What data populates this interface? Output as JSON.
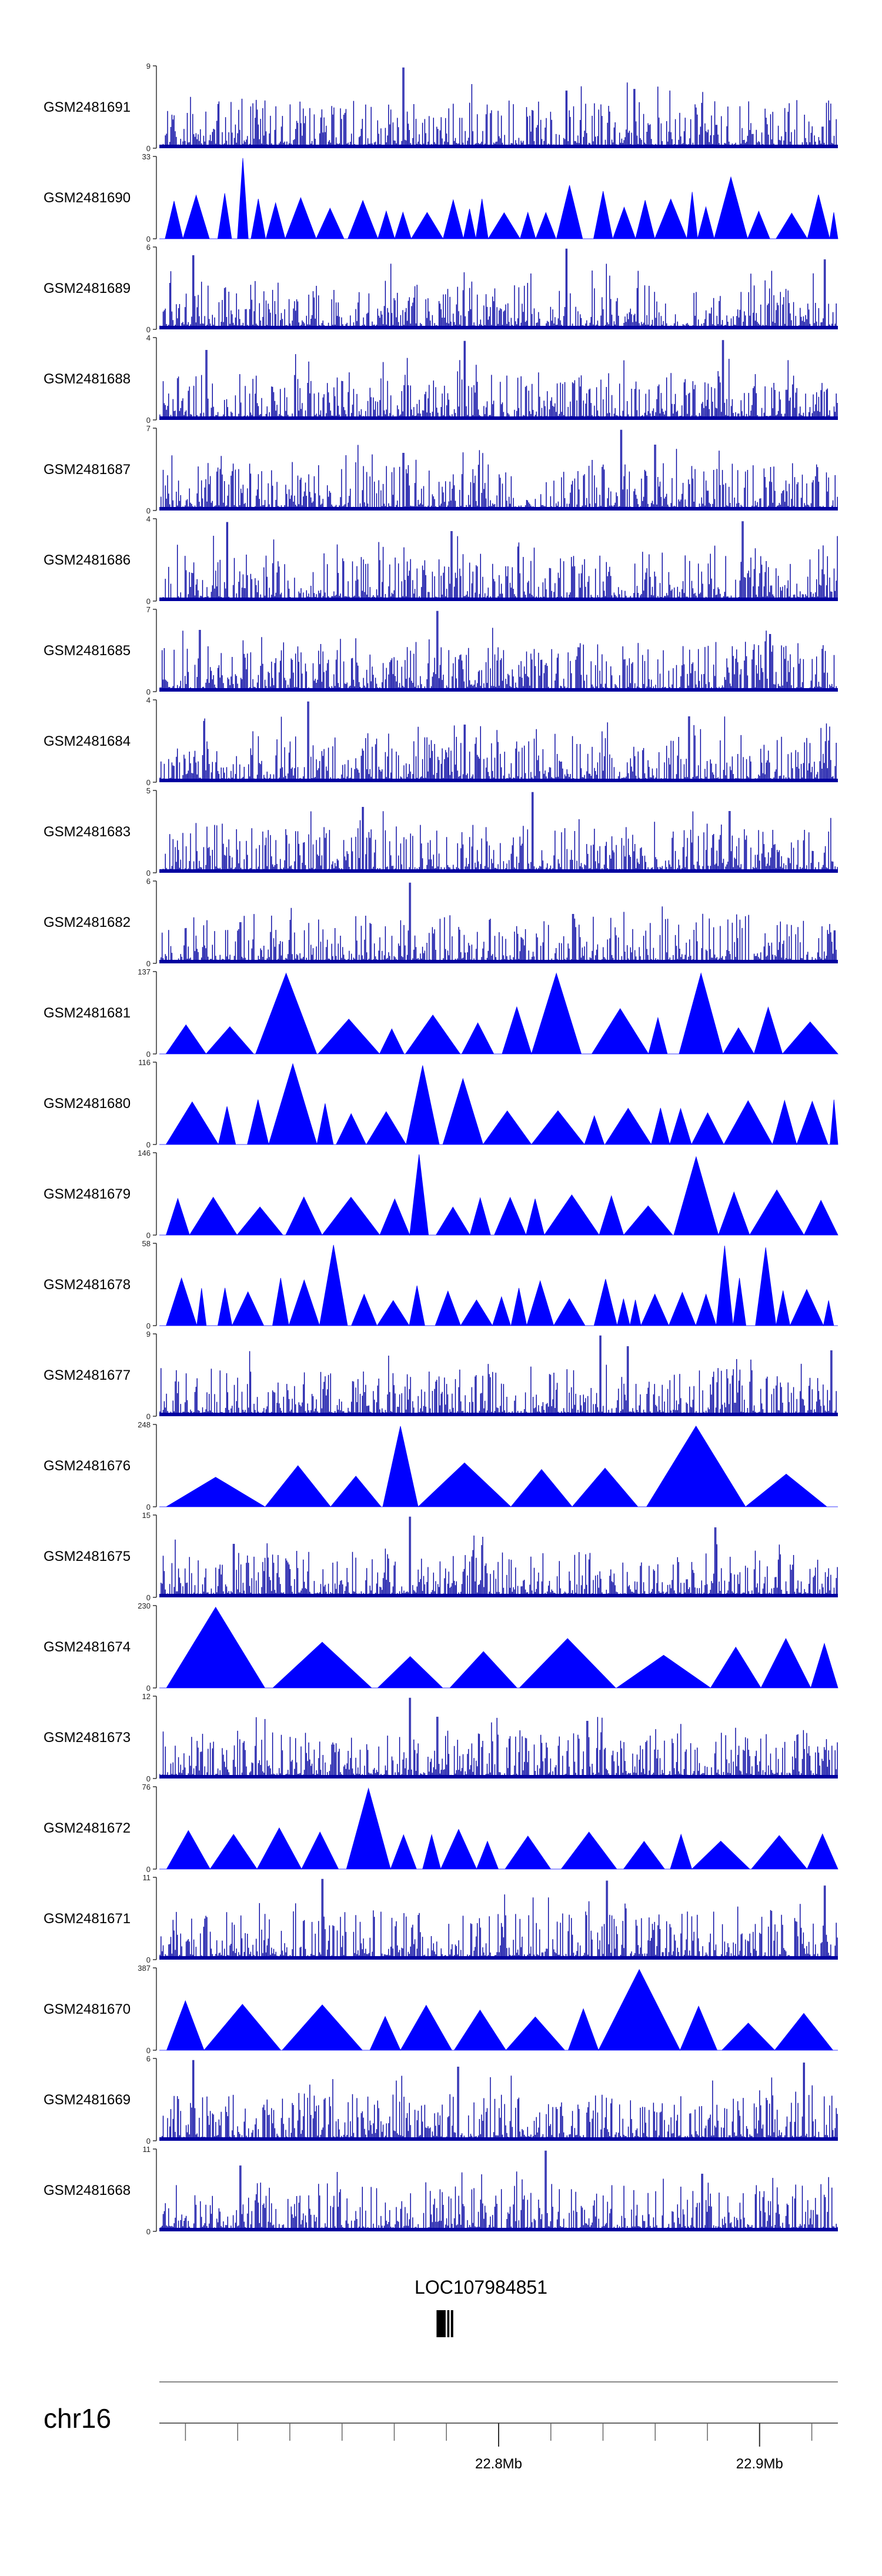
{
  "chart_data": {
    "type": "area",
    "title": "",
    "chromosome": "chr16",
    "gene_label": "LOC107984851",
    "fill_color": "#0000ff",
    "signal_color": "#0000a0",
    "x_range_mb": [
      22.67,
      22.93
    ],
    "x_ticks": [
      {
        "pos": 22.8,
        "label": "22.8Mb"
      },
      {
        "pos": 22.9,
        "label": "22.9Mb"
      }
    ],
    "tracks": [
      {
        "name": "GSM2481691",
        "ymin": "0",
        "ymax": "9",
        "style": "dense",
        "seed": 11,
        "peaks": [
          [
            0.36,
            0.98
          ],
          [
            0.7,
            0.72
          ],
          [
            0.6,
            0.7
          ]
        ]
      },
      {
        "name": "GSM2481690",
        "ymin": "0",
        "ymax": "33",
        "style": "tri",
        "seed": 23,
        "peaks": [
          [
            0.13,
            0.98
          ],
          [
            0.6,
            0.65
          ],
          [
            0.86,
            0.75
          ]
        ]
      },
      {
        "name": "GSM2481689",
        "ymin": "0",
        "ymax": "6",
        "style": "dense",
        "seed": 37,
        "peaks": [
          [
            0.6,
            0.98
          ],
          [
            0.05,
            0.9
          ],
          [
            0.98,
            0.85
          ]
        ]
      },
      {
        "name": "GSM2481688",
        "ymin": "0",
        "ymax": "4",
        "style": "dense",
        "seed": 41,
        "peaks": [
          [
            0.45,
            0.96
          ],
          [
            0.83,
            0.97
          ],
          [
            0.07,
            0.85
          ]
        ]
      },
      {
        "name": "GSM2481687",
        "ymin": "0",
        "ymax": "7",
        "style": "dense",
        "seed": 53,
        "peaks": [
          [
            0.68,
            0.98
          ],
          [
            0.73,
            0.8
          ],
          [
            0.36,
            0.7
          ]
        ]
      },
      {
        "name": "GSM2481686",
        "ymin": "0",
        "ymax": "4",
        "style": "dense",
        "seed": 67,
        "peaks": [
          [
            0.1,
            0.96
          ],
          [
            0.86,
            0.97
          ],
          [
            0.43,
            0.85
          ]
        ]
      },
      {
        "name": "GSM2481685",
        "ymin": "0",
        "ymax": "7",
        "style": "dense",
        "seed": 71,
        "peaks": [
          [
            0.41,
            0.98
          ],
          [
            0.06,
            0.75
          ],
          [
            0.9,
            0.7
          ]
        ]
      },
      {
        "name": "GSM2481684",
        "ymin": "0",
        "ymax": "4",
        "style": "dense",
        "seed": 83,
        "peaks": [
          [
            0.22,
            0.98
          ],
          [
            0.78,
            0.8
          ],
          [
            0.45,
            0.7
          ]
        ]
      },
      {
        "name": "GSM2481683",
        "ymin": "0",
        "ymax": "5",
        "style": "dense",
        "seed": 97,
        "peaks": [
          [
            0.55,
            0.98
          ],
          [
            0.3,
            0.8
          ],
          [
            0.84,
            0.75
          ]
        ]
      },
      {
        "name": "GSM2481682",
        "ymin": "0",
        "ymax": "6",
        "style": "dense",
        "seed": 101,
        "peaks": [
          [
            0.37,
            0.98
          ],
          [
            0.61,
            0.6
          ],
          [
            0.12,
            0.5
          ]
        ]
      },
      {
        "name": "GSM2481681",
        "ymin": "0",
        "ymax": "137",
        "style": "tri",
        "seed": 113,
        "peaks": [
          [
            0.19,
            0.98
          ],
          [
            0.58,
            0.98
          ],
          [
            0.79,
            0.98
          ]
        ]
      },
      {
        "name": "GSM2481680",
        "ymin": "0",
        "ymax": "116",
        "style": "tri",
        "seed": 127,
        "peaks": [
          [
            0.2,
            0.98
          ],
          [
            0.41,
            0.96
          ],
          [
            0.47,
            0.8
          ]
        ]
      },
      {
        "name": "GSM2481679",
        "ymin": "0",
        "ymax": "146",
        "style": "tri",
        "seed": 131,
        "peaks": [
          [
            0.37,
            0.98
          ],
          [
            0.39,
            0.8
          ],
          [
            0.81,
            0.95
          ]
        ]
      },
      {
        "name": "GSM2481678",
        "ymin": "0",
        "ymax": "58",
        "style": "tri",
        "seed": 139,
        "peaks": [
          [
            0.26,
            0.98
          ],
          [
            0.84,
            0.97
          ],
          [
            0.9,
            0.95
          ]
        ]
      },
      {
        "name": "GSM2481677",
        "ymin": "0",
        "ymax": "9",
        "style": "dense",
        "seed": 149,
        "peaks": [
          [
            0.65,
            0.98
          ],
          [
            0.69,
            0.85
          ],
          [
            0.99,
            0.8
          ]
        ]
      },
      {
        "name": "GSM2481676",
        "ymin": "0",
        "ymax": "248",
        "style": "tri",
        "seed": 151,
        "peaks": [
          [
            0.33,
            0.98
          ],
          [
            0.74,
            0.98
          ],
          [
            0.16,
            0.5
          ]
        ]
      },
      {
        "name": "GSM2481675",
        "ymin": "0",
        "ymax": "15",
        "style": "dense",
        "seed": 163,
        "peaks": [
          [
            0.37,
            0.98
          ],
          [
            0.82,
            0.85
          ],
          [
            0.11,
            0.65
          ]
        ]
      },
      {
        "name": "GSM2481674",
        "ymin": "0",
        "ymax": "230",
        "style": "tri",
        "seed": 173,
        "peaks": [
          [
            0.13,
            0.98
          ],
          [
            0.54,
            0.6
          ],
          [
            0.89,
            0.6
          ]
        ]
      },
      {
        "name": "GSM2481673",
        "ymin": "0",
        "ymax": "12",
        "style": "dense",
        "seed": 181,
        "peaks": [
          [
            0.37,
            0.98
          ],
          [
            0.41,
            0.75
          ],
          [
            0.63,
            0.7
          ]
        ]
      },
      {
        "name": "GSM2481672",
        "ymin": "0",
        "ymax": "76",
        "style": "tri",
        "seed": 191,
        "peaks": [
          [
            0.31,
            0.98
          ],
          [
            0.2,
            0.5
          ],
          [
            0.6,
            0.45
          ]
        ]
      },
      {
        "name": "GSM2481671",
        "ymin": "0",
        "ymax": "11",
        "style": "dense",
        "seed": 193,
        "peaks": [
          [
            0.24,
            0.98
          ],
          [
            0.66,
            0.96
          ],
          [
            0.98,
            0.9
          ]
        ]
      },
      {
        "name": "GSM2481670",
        "ymin": "0",
        "ymax": "387",
        "style": "tri",
        "seed": 197,
        "peaks": [
          [
            0.66,
            0.98
          ],
          [
            0.04,
            0.6
          ],
          [
            0.33,
            0.35
          ]
        ]
      },
      {
        "name": "GSM2481669",
        "ymin": "0",
        "ymax": "6",
        "style": "dense",
        "seed": 199,
        "peaks": [
          [
            0.05,
            0.98
          ],
          [
            0.44,
            0.9
          ],
          [
            0.95,
            0.95
          ]
        ]
      },
      {
        "name": "GSM2481668",
        "ymin": "0",
        "ymax": "11",
        "style": "dense",
        "seed": 211,
        "peaks": [
          [
            0.57,
            0.98
          ],
          [
            0.12,
            0.8
          ],
          [
            0.8,
            0.7
          ]
        ]
      }
    ],
    "gene_blocks": [
      {
        "start": 22.7762,
        "end": 22.7797
      },
      {
        "start": 22.7803,
        "end": 22.7811
      },
      {
        "start": 22.7817,
        "end": 22.7826
      }
    ]
  }
}
